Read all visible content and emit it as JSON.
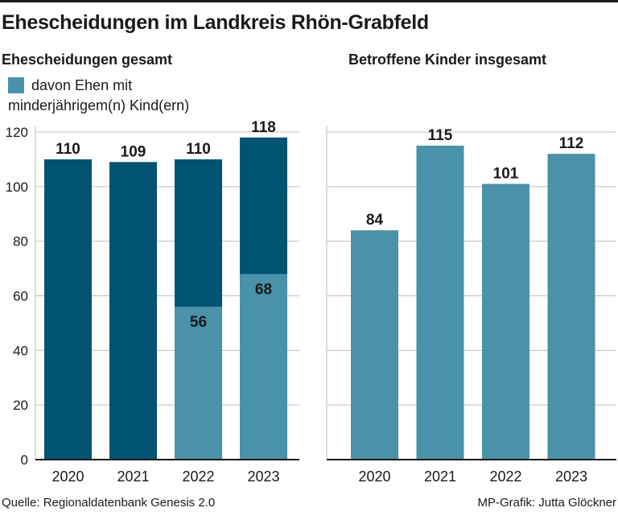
{
  "title": "Ehescheidungen im Landkreis Rhön-Grabfeld",
  "source": "Quelle: Regionaldatenbank Genesis 2.0",
  "credit": "MP-Grafik: Jutta Glöckner",
  "legend": {
    "line1": "davon Ehen mit",
    "line2": "minderjährigem(n) Kind(ern)"
  },
  "colors": {
    "dark": "#005371",
    "light": "#4a91aa"
  },
  "chart_data": [
    {
      "type": "bar",
      "title": "Ehescheidungen gesamt",
      "categories": [
        "2020",
        "2021",
        "2022",
        "2023"
      ],
      "series": [
        {
          "values": [
            110,
            109,
            110,
            118
          ]
        },
        {
          "name": "davon Ehen mit minderjährigem(n) Kind(ern)",
          "values": [
            null,
            null,
            56,
            68
          ]
        }
      ],
      "ylim": [
        0,
        120
      ],
      "yticks": [
        0,
        20,
        40,
        60,
        80,
        100,
        120
      ],
      "grid": true
    },
    {
      "type": "bar",
      "title": "Betroffene Kinder insgesamt",
      "categories": [
        "2020",
        "2021",
        "2022",
        "2023"
      ],
      "series": [
        {
          "values": [
            84,
            115,
            101,
            112
          ]
        }
      ],
      "ylim": [
        0,
        120
      ],
      "grid": true
    }
  ]
}
